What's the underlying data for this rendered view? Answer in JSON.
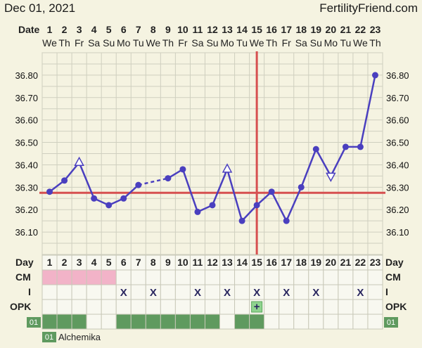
{
  "header": {
    "date": "Dec 01, 2021",
    "brand": "FertilityFriend.com"
  },
  "row_labels": {
    "date": "Date",
    "day": "Day",
    "cm": "CM",
    "i": "I",
    "opk": "OPK",
    "tag": "01"
  },
  "legend": {
    "tag": "01",
    "name": "Alchemika"
  },
  "chart_data": {
    "type": "line",
    "title": "",
    "x": [
      1,
      2,
      3,
      4,
      5,
      6,
      7,
      8,
      9,
      10,
      11,
      12,
      13,
      14,
      15,
      16,
      17,
      18,
      19,
      20,
      21,
      22,
      23
    ],
    "weekdays": [
      "We",
      "Th",
      "Fr",
      "Sa",
      "Su",
      "Mo",
      "Tu",
      "We",
      "Th",
      "Fr",
      "Sa",
      "Su",
      "Mo",
      "Tu",
      "We",
      "Th",
      "Fr",
      "Sa",
      "Su",
      "Mo",
      "Tu",
      "We",
      "Th"
    ],
    "y": [
      36.28,
      36.33,
      36.41,
      36.25,
      36.22,
      36.25,
      36.31,
      null,
      36.34,
      36.38,
      36.19,
      36.22,
      36.38,
      36.15,
      36.22,
      36.28,
      36.15,
      36.3,
      36.47,
      36.35,
      36.48,
      36.48,
      36.8
    ],
    "open_marker_days": [
      3,
      13
    ],
    "down_marker_days": [
      20
    ],
    "dashed_segments": [
      [
        7,
        9
      ]
    ],
    "yticks": [
      "36.10",
      "36.20",
      "36.30",
      "36.40",
      "36.50",
      "36.60",
      "36.70",
      "36.80"
    ],
    "ylim": [
      36.0,
      36.9
    ],
    "coverline": 36.275,
    "ovulation_day": 15,
    "line_color": "#4a3fbf",
    "reference_color": "#d65050",
    "cm_days": [
      1,
      2,
      3,
      4,
      5
    ],
    "cm_color": "#f2b3c8",
    "intercourse_days": [
      6,
      8,
      11,
      13,
      15,
      17,
      19,
      22
    ],
    "intercourse_mark": "X",
    "opk_days": [
      15
    ],
    "opk_mark": "+",
    "opk_color": "#8fd38f",
    "green_days": [
      1,
      2,
      3,
      6,
      7,
      8,
      9,
      10,
      11,
      12,
      14,
      15
    ],
    "green_color": "#5f9a5f"
  }
}
